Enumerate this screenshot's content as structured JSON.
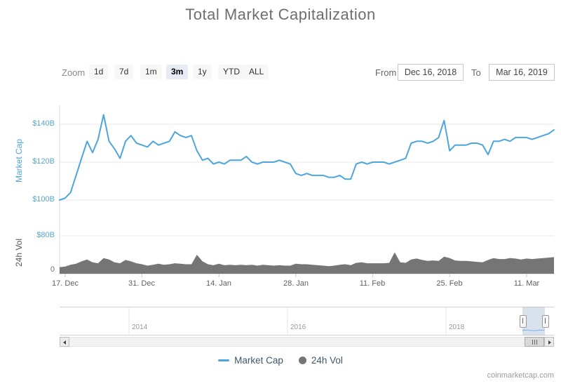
{
  "header": {
    "title": "Total Market Capitalization"
  },
  "toolbar": {
    "zoom_label": "Zoom",
    "zoom_buttons": [
      {
        "label": "1d",
        "selected": false
      },
      {
        "label": "7d",
        "selected": false
      },
      {
        "label": "1m",
        "selected": false
      },
      {
        "label": "3m",
        "selected": true
      },
      {
        "label": "1y",
        "selected": false
      },
      {
        "label": "YTD",
        "selected": false
      },
      {
        "label": "ALL",
        "selected": false
      }
    ],
    "from_label": "From",
    "from_value": "Dec 16, 2018",
    "to_label": "To",
    "to_value": "Mar 16, 2019"
  },
  "axes": {
    "market_cap_title": "Market Cap",
    "vol_title": "24h Vol",
    "market_cap_ticks": [
      "$140B",
      "$120B",
      "$100B"
    ],
    "vol_ticks": [
      "$80B",
      "0"
    ],
    "x_ticks": [
      "17. Dec",
      "31. Dec",
      "14. Jan",
      "28. Jan",
      "11. Feb",
      "25. Feb",
      "11. Mar"
    ]
  },
  "legend": {
    "items": [
      {
        "label": "Market Cap",
        "marker": "line",
        "color": "#4DA6DB"
      },
      {
        "label": "24h Vol",
        "marker": "circle",
        "color": "#757575"
      }
    ]
  },
  "navigator": {
    "year_labels": [
      "2014",
      "2016",
      "2018"
    ]
  },
  "credit": "coinmarketcap.com",
  "chart_data": {
    "type": "line",
    "title": "Total Market Capitalization",
    "x_start": "Dec 16, 2018",
    "x_end": "Mar 16, 2019",
    "x_unit": "day",
    "x_tick_labels": [
      "17. Dec",
      "31. Dec",
      "14. Jan",
      "28. Jan",
      "11. Feb",
      "25. Feb",
      "11. Mar"
    ],
    "x_tick_day_index": [
      1,
      15,
      29,
      43,
      57,
      71,
      85
    ],
    "series": [
      {
        "name": "Market Cap",
        "type": "line",
        "color": "#4DA6DB",
        "unit": "billion USD",
        "ylim": [
          95,
          150
        ],
        "yticks": [
          100,
          120,
          140
        ],
        "values": [
          100,
          101,
          104,
          113,
          122,
          131,
          125,
          132,
          145,
          131,
          127,
          122,
          131,
          134,
          130,
          129,
          128,
          131,
          129,
          130,
          131,
          136,
          134,
          133,
          134,
          126,
          121,
          122,
          119,
          120,
          119,
          121,
          121,
          121,
          123,
          120,
          119,
          120,
          120,
          120,
          121,
          120,
          119,
          114,
          113,
          114,
          113,
          113,
          113,
          112,
          112,
          113,
          111,
          111,
          119,
          120,
          119,
          120,
          120,
          120,
          119,
          120,
          121,
          122,
          130,
          131,
          131,
          130,
          131,
          133,
          142,
          126,
          129,
          129,
          129,
          130,
          130,
          129,
          124,
          131,
          131,
          132,
          131,
          133,
          133,
          133,
          132,
          133,
          134,
          135,
          137
        ]
      },
      {
        "name": "24h Vol",
        "type": "area",
        "color": "#757575",
        "unit": "billion USD",
        "ylim": [
          0,
          80
        ],
        "yticks": [
          0,
          80
        ],
        "values": [
          14,
          15,
          19,
          21,
          26,
          30,
          24,
          22,
          33,
          30,
          24,
          22,
          29,
          26,
          22,
          20,
          17,
          19,
          21,
          19,
          20,
          22,
          21,
          20,
          20,
          40,
          26,
          20,
          18,
          21,
          18,
          19,
          18,
          19,
          18,
          19,
          17,
          19,
          18,
          17,
          18,
          17,
          17,
          21,
          20,
          20,
          19,
          18,
          17,
          16,
          17,
          19,
          20,
          18,
          23,
          24,
          22,
          22,
          22,
          22,
          23,
          45,
          24,
          23,
          30,
          32,
          29,
          27,
          28,
          27,
          36,
          33,
          28,
          27,
          27,
          26,
          25,
          24,
          29,
          33,
          31,
          31,
          33,
          32,
          30,
          32,
          31,
          32,
          33,
          34,
          35
        ]
      }
    ],
    "navigator": {
      "year_gridlines": [
        "2014",
        "2016",
        "2018"
      ],
      "selected_range": [
        "Dec 16, 2018",
        "Mar 16, 2019"
      ],
      "full_range_max": 830
    },
    "legend_position": "bottom",
    "grid": true
  }
}
